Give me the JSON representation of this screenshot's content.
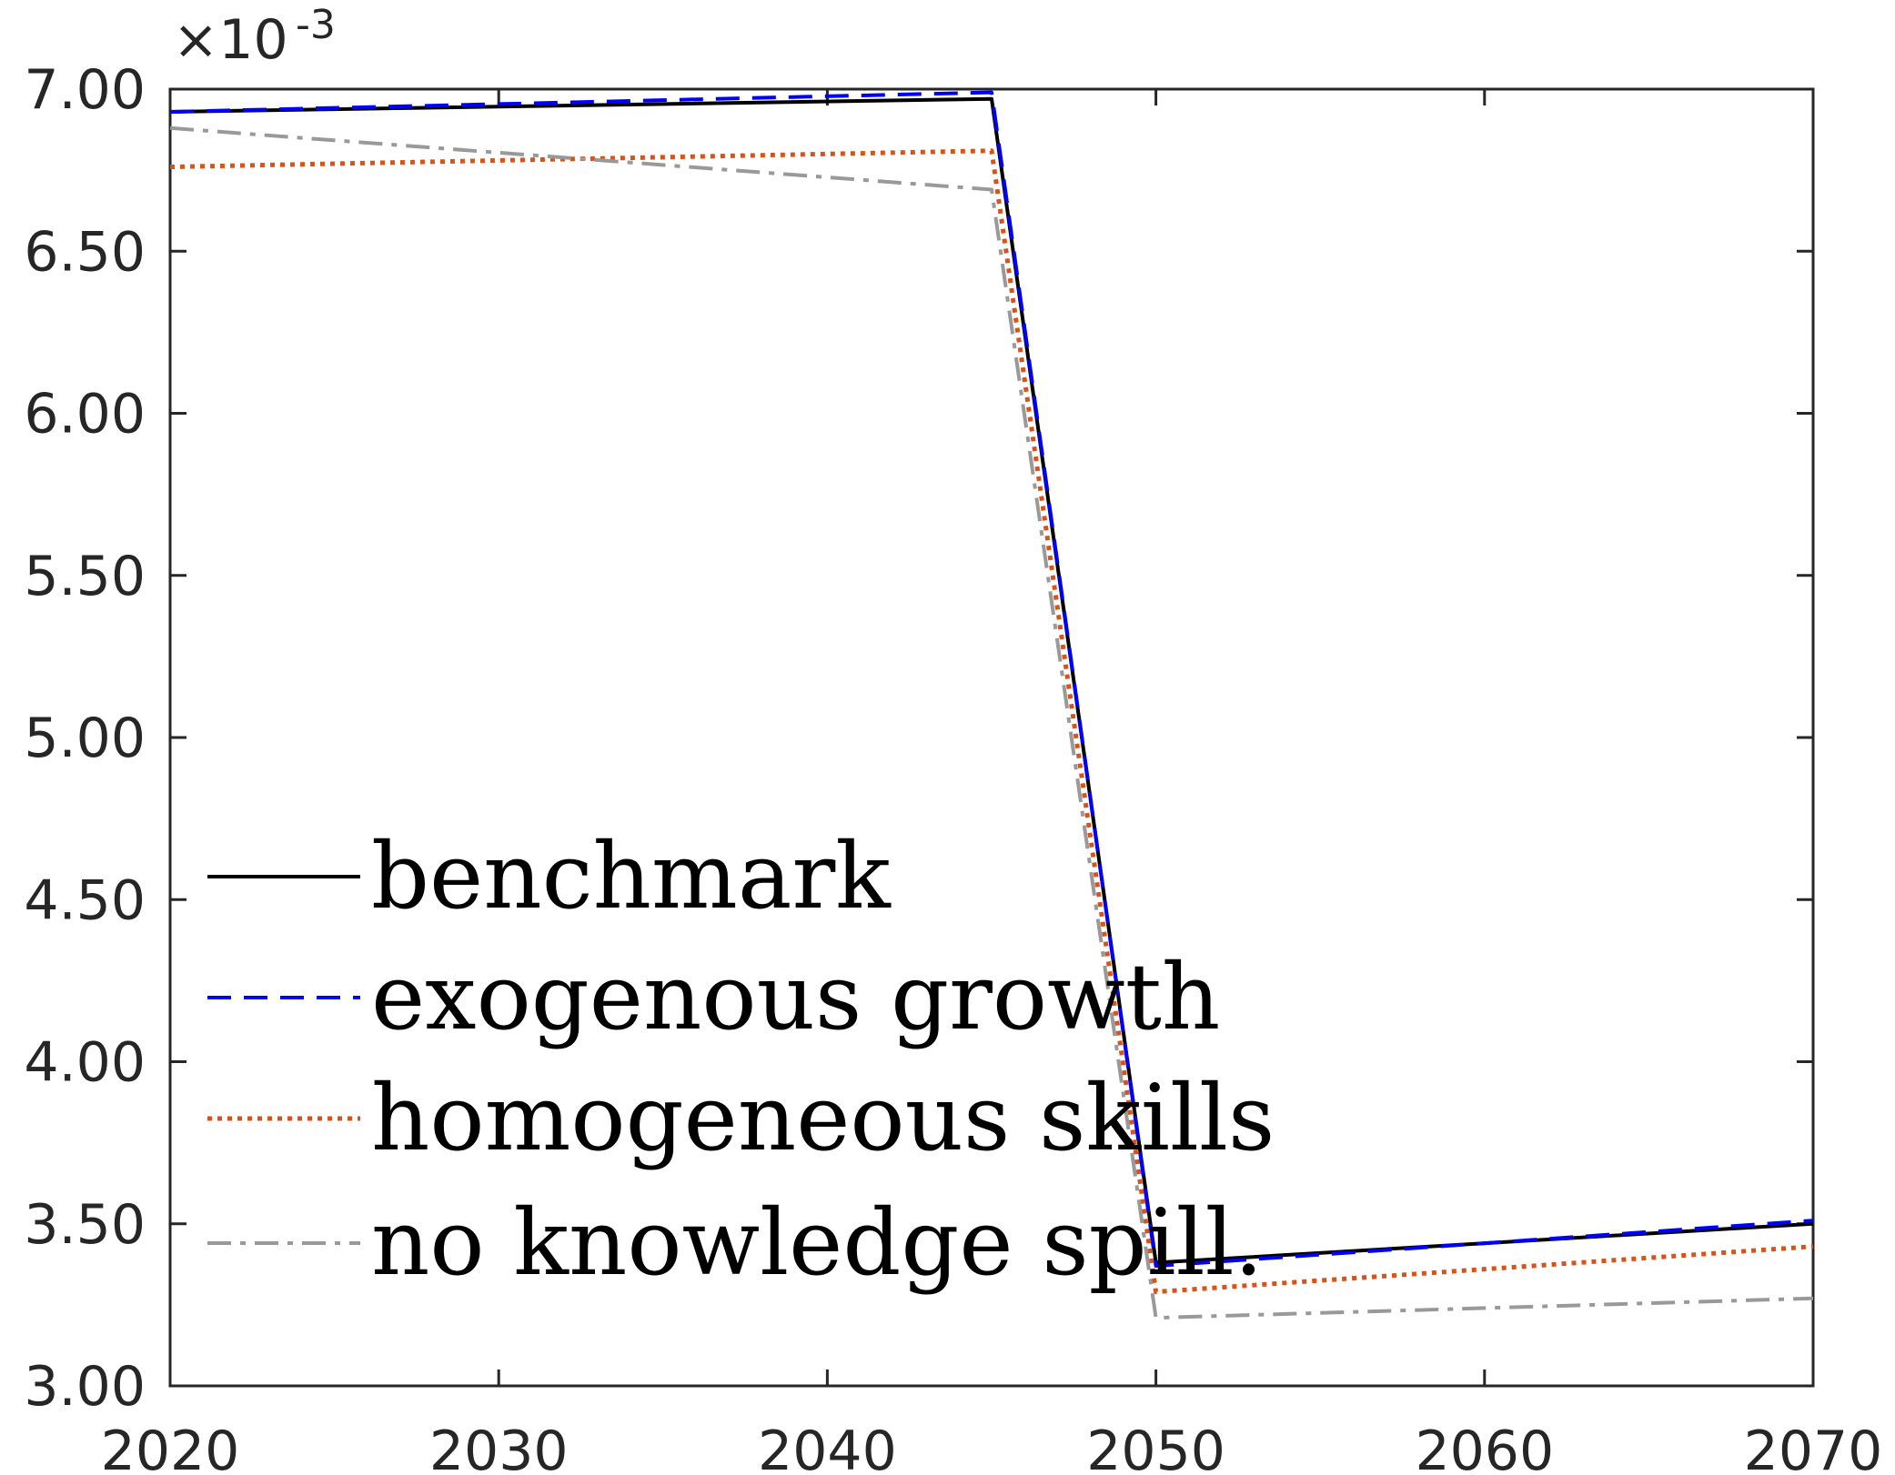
{
  "chart_data": {
    "type": "line",
    "title": "",
    "xlabel": "",
    "ylabel": "",
    "xlim": [
      2020,
      2070
    ],
    "ylim": [
      3.0,
      7.0
    ],
    "x_ticks": [
      2020,
      2030,
      2040,
      2050,
      2060,
      2070
    ],
    "x_tick_labels": [
      "2020",
      "2030",
      "2040",
      "2050",
      "2060",
      "2070"
    ],
    "y_ticks": [
      3.0,
      3.5,
      4.0,
      4.5,
      5.0,
      5.5,
      6.0,
      6.5,
      7.0
    ],
    "y_tick_labels": [
      "3.00",
      "3.50",
      "4.00",
      "4.50",
      "5.00",
      "5.50",
      "6.00",
      "6.50",
      "7.00"
    ],
    "y_exponent": {
      "base": "×10",
      "power": "-3"
    },
    "grid": false,
    "legend_position": "lower-left",
    "series": [
      {
        "name": "benchmark",
        "color": "#000000",
        "style": "solid",
        "x": [
          2020,
          2045,
          2050,
          2070
        ],
        "y": [
          6.93,
          6.97,
          3.38,
          3.5
        ]
      },
      {
        "name": "exogenous growth",
        "color": "#0000ff",
        "style": "dashed",
        "x": [
          2020,
          2045,
          2050,
          2070
        ],
        "y": [
          6.93,
          6.99,
          3.37,
          3.51
        ]
      },
      {
        "name": "homogeneous skills",
        "color": "#d95319",
        "style": "dotted",
        "x": [
          2020,
          2045,
          2050,
          2070
        ],
        "y": [
          6.76,
          6.81,
          3.29,
          3.43
        ]
      },
      {
        "name": "no knowledge spill.",
        "color": "#999999",
        "style": "dashdot",
        "x": [
          2020,
          2045,
          2050,
          2070
        ],
        "y": [
          6.88,
          6.69,
          3.21,
          3.27
        ]
      }
    ]
  }
}
